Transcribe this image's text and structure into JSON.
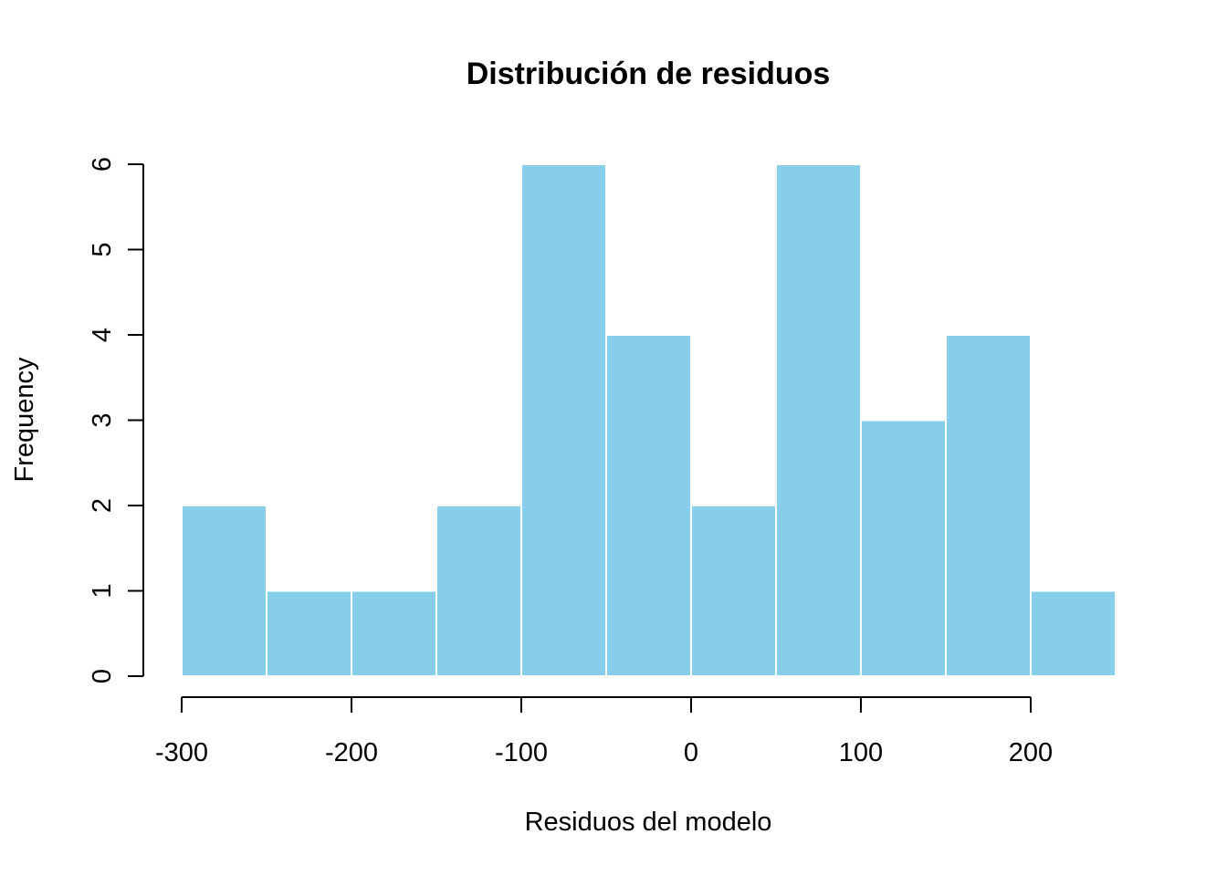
{
  "chart_data": {
    "type": "bar",
    "title": "Distribución de residuos",
    "xlabel": "Residuos del modelo",
    "ylabel": "Frequency",
    "bin_edges": [
      -300,
      -250,
      -200,
      -150,
      -100,
      -50,
      0,
      50,
      100,
      150,
      200,
      250
    ],
    "values": [
      2,
      1,
      1,
      2,
      6,
      4,
      2,
      6,
      3,
      4,
      1
    ],
    "x_ticks": [
      -300,
      -200,
      -100,
      0,
      100,
      200
    ],
    "x_tick_labels": [
      "-300",
      "-200",
      "-100",
      "0",
      "100",
      "200"
    ],
    "y_ticks": [
      0,
      1,
      2,
      3,
      4,
      5,
      6
    ],
    "y_tick_labels": [
      "0",
      "1",
      "2",
      "3",
      "4",
      "5",
      "6"
    ],
    "xlim": [
      -300,
      250
    ],
    "ylim": [
      0,
      6
    ],
    "grid": false,
    "bar_color": "#87CEEB",
    "bar_border_color": "#FFFFFF"
  }
}
